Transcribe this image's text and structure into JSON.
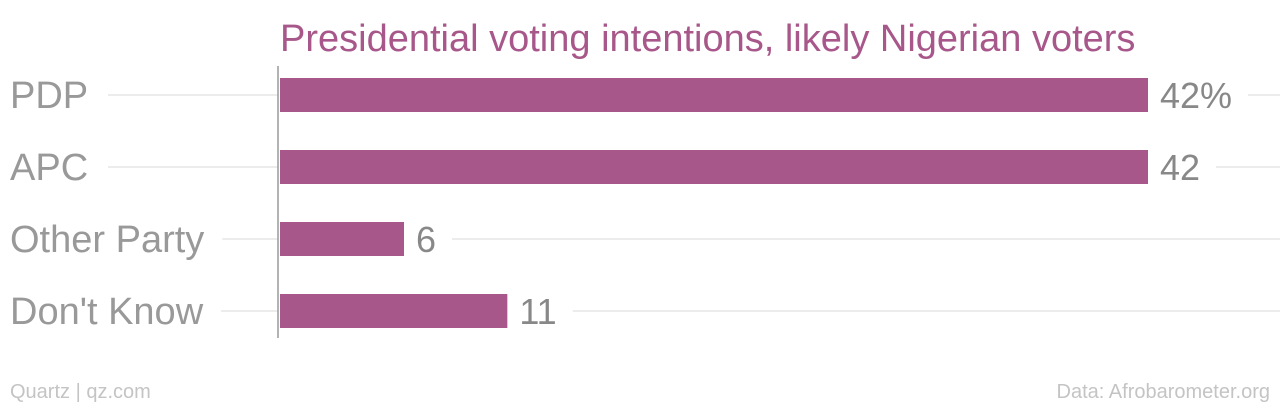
{
  "chart_data": {
    "type": "bar",
    "orientation": "horizontal",
    "title": "Presidential voting intentions, likely Nigerian voters",
    "categories": [
      "PDP",
      "APC",
      "Other Party",
      "Don't Know"
    ],
    "values": [
      42,
      42,
      6,
      11
    ],
    "value_labels": [
      "42%",
      "42",
      "6",
      "11"
    ],
    "unit": "%",
    "xlim": [
      0,
      42
    ],
    "xlabel": "",
    "ylabel": "",
    "grid": true,
    "legend": "none",
    "bar_color": "#a8578a"
  },
  "footer": {
    "left": "Quartz | qz.com",
    "right": "Data: Afrobarometer.org"
  },
  "colors": {
    "accent": "#a8578a",
    "label_gray": "#999999",
    "value_gray": "#888888",
    "footer_gray": "#c4c4c4"
  }
}
